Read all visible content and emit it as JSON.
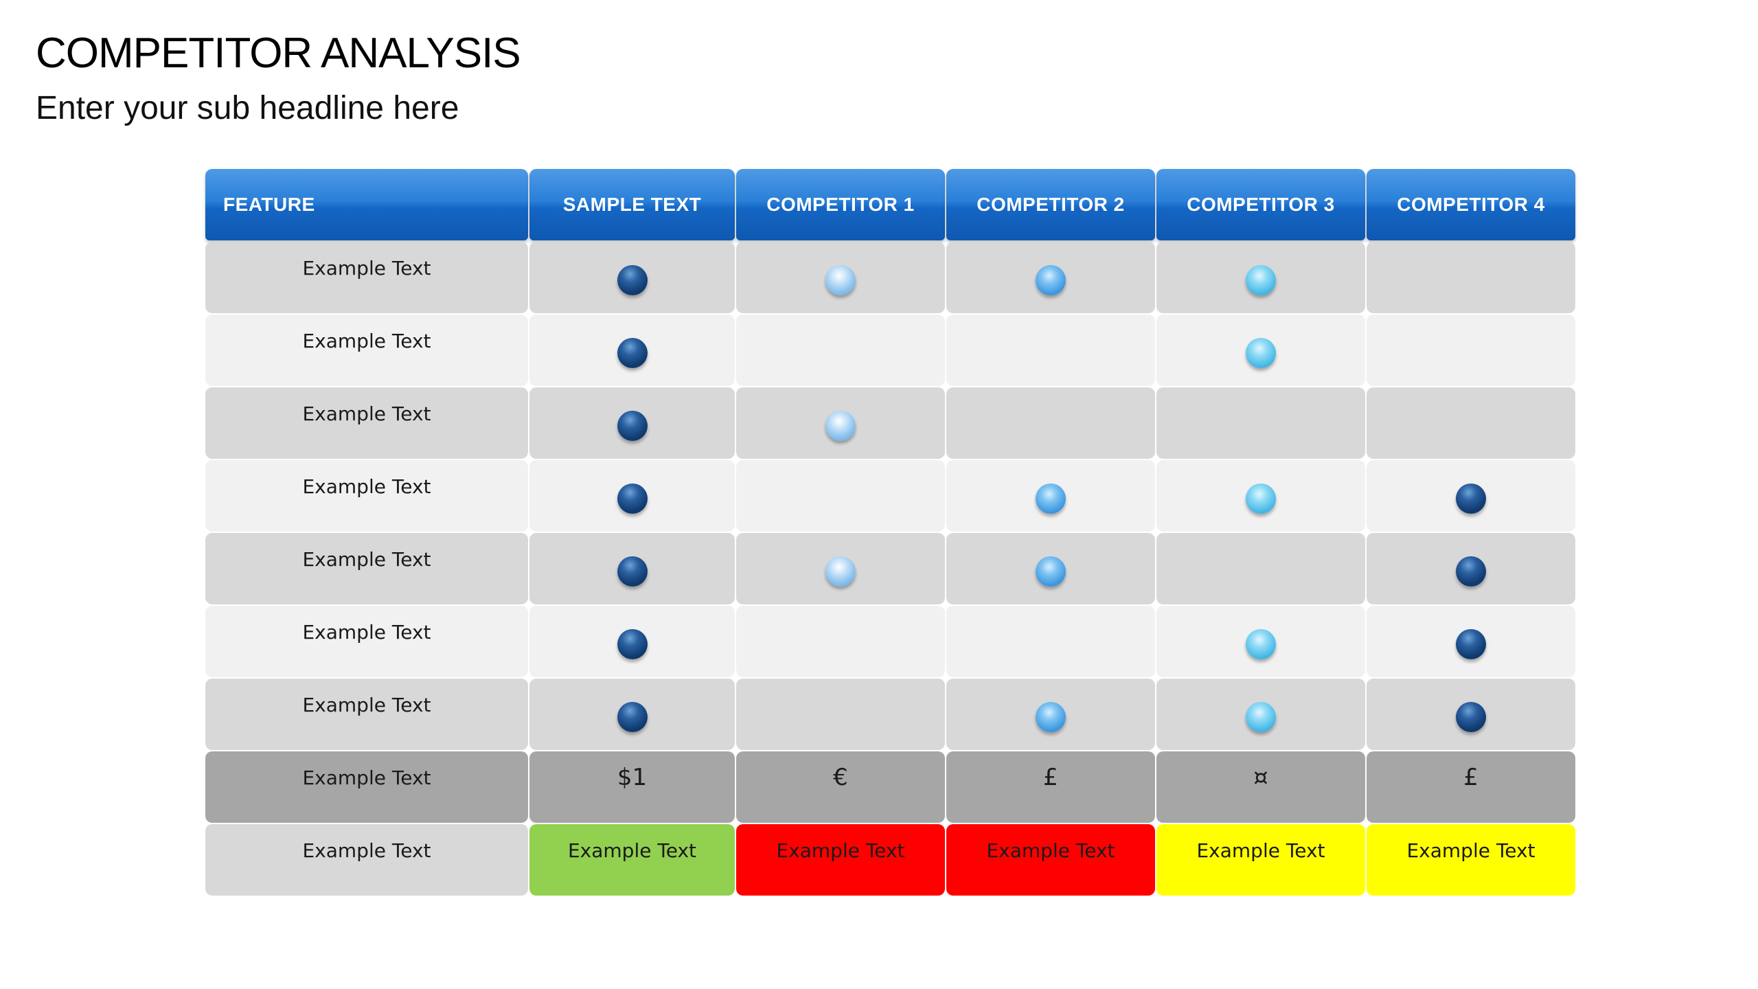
{
  "title": "COMPETITOR ANALYSIS",
  "subtitle": "Enter your sub headline here",
  "headers": [
    "FEATURE",
    "SAMPLE TEXT",
    "COMPETITOR 1",
    "COMPETITOR 2",
    "COMPETITOR 3",
    "COMPETITOR 4"
  ],
  "rows": [
    {
      "feature": "Example Text",
      "marks": [
        "navy-dot",
        "pale-blue-dot",
        "blue-dot",
        "cyan-dot",
        ""
      ]
    },
    {
      "feature": "Example Text",
      "marks": [
        "navy-dot",
        "",
        "",
        "cyan-dot",
        ""
      ]
    },
    {
      "feature": "Example Text",
      "marks": [
        "navy-dot",
        "pale-blue-dot",
        "",
        "",
        ""
      ]
    },
    {
      "feature": "Example Text",
      "marks": [
        "navy-dot",
        "",
        "blue-dot",
        "cyan-dot",
        "navy-dot"
      ]
    },
    {
      "feature": "Example Text",
      "marks": [
        "navy-dot",
        "pale-blue-dot",
        "blue-dot",
        "",
        "navy-dot"
      ]
    },
    {
      "feature": "Example Text",
      "marks": [
        "navy-dot",
        "",
        "",
        "cyan-dot",
        "navy-dot"
      ]
    },
    {
      "feature": "Example Text",
      "marks": [
        "navy-dot",
        "",
        "blue-dot",
        "cyan-dot",
        "navy-dot"
      ]
    }
  ],
  "price_row": {
    "feature": "Example Text",
    "values": [
      "$1",
      "€",
      "£",
      "¤",
      "£"
    ]
  },
  "rating_row": {
    "feature": "Example Text",
    "labels": [
      "Example Text",
      "Example Text",
      "Example Text",
      "Example Text",
      "Example Text"
    ],
    "colors": [
      "#92d050",
      "#ff0000",
      "#ff0000",
      "#ffff00",
      "#ffff00"
    ]
  }
}
